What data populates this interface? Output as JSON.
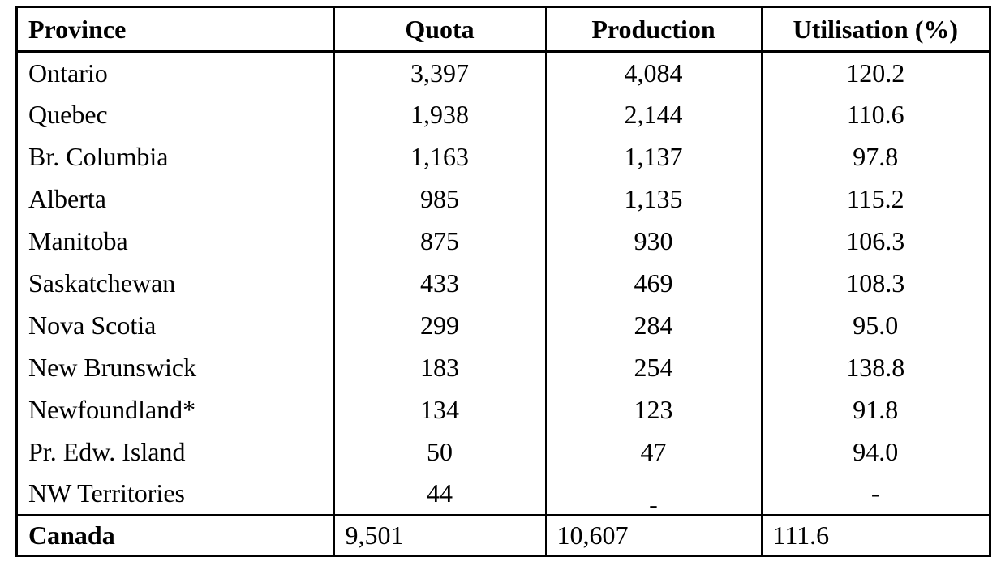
{
  "table": {
    "columns": [
      {
        "label": "Province"
      },
      {
        "label": "Quota"
      },
      {
        "label": "Production"
      },
      {
        "label": "Utilisation (%)"
      }
    ],
    "rows": [
      {
        "province": "Ontario",
        "quota": "3,397",
        "production": "4,084",
        "utilisation": "120.2"
      },
      {
        "province": "Quebec",
        "quota": "1,938",
        "production": "2,144",
        "utilisation": "110.6"
      },
      {
        "province": "Br. Columbia",
        "quota": "1,163",
        "production": "1,137",
        "utilisation": "97.8"
      },
      {
        "province": "Alberta",
        "quota": "985",
        "production": "1,135",
        "utilisation": "115.2"
      },
      {
        "province": "Manitoba",
        "quota": "875",
        "production": "930",
        "utilisation": "106.3"
      },
      {
        "province": "Saskatchewan",
        "quota": "433",
        "production": "469",
        "utilisation": "108.3"
      },
      {
        "province": "Nova Scotia",
        "quota": "299",
        "production": "284",
        "utilisation": "95.0"
      },
      {
        "province": "New Brunswick",
        "quota": "183",
        "production": "254",
        "utilisation": "138.8"
      },
      {
        "province": "Newfoundland*",
        "quota": "134",
        "production": "123",
        "utilisation": "91.8"
      },
      {
        "province": "Pr. Edw. Island",
        "quota": "50",
        "production": "47",
        "utilisation": "94.0"
      },
      {
        "province": "NW Territories",
        "quota": "44",
        "production": "-",
        "utilisation": "-"
      }
    ],
    "total_row": {
      "province": "Canada",
      "quota": "9,501",
      "production": "10,607",
      "utilisation": "111.6"
    },
    "colors": {
      "text": "#000000",
      "border": "#000000",
      "background": "#ffffff"
    }
  }
}
